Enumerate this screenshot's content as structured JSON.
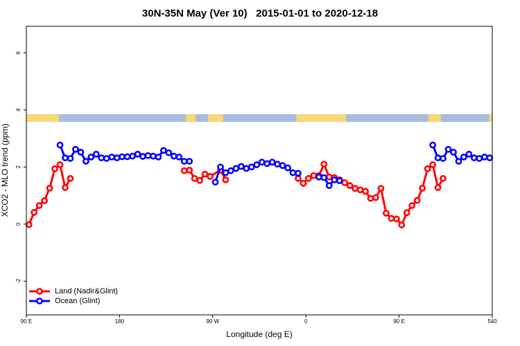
{
  "chart_data": {
    "type": "line",
    "title": "30N-35N May (Ver 10)   2015-01-01 to 2020-12-18",
    "x_label": "Longitude (deg E)",
    "y_label": "XCO2 - MLO trend (ppm)",
    "xlim": [
      90,
      540
    ],
    "ylim": [
      -3.18,
      6.93
    ],
    "xticks": [
      {
        "value": 90,
        "label": "90 E"
      },
      180,
      {
        "value": 270,
        "label": "90 W"
      },
      {
        "value": 360,
        "label": "0"
      },
      {
        "value": 450,
        "label": "90 E"
      },
      540
    ],
    "yticks": [
      -2,
      0,
      2,
      4,
      6
    ],
    "grid": false,
    "legend": "bottom-left",
    "surface_mask": {
      "ylim": [
        3.58,
        3.85
      ],
      "ocean_color": "#a8bcdc",
      "land_color": "#f7d87a",
      "land": [
        [
          90,
          121.5
        ],
        [
          244,
          253.5
        ],
        [
          265.5,
          280
        ],
        [
          351,
          399
        ],
        [
          478.5,
          490.5
        ],
        [
          537,
          540
        ]
      ]
    },
    "series": [
      {
        "name": "Land (Nadir&Glint)",
        "color": "#ff0000",
        "x": [
          92.5,
          97.5,
          102.5,
          107.5,
          112.5,
          117.5,
          122.5,
          127.5,
          132.5,
          137.5,
          242.5,
          247.5,
          252.5,
          257.5,
          262.5,
          267.5,
          277.5,
          282.5,
          287.5,
          352.5,
          357.5,
          362.5,
          367.5,
          372.5,
          377.5,
          382.5,
          387.5,
          392.5,
          397.5,
          402.5,
          407.5,
          412.5,
          417.5,
          422.5,
          427.5,
          432.5,
          437.5,
          442.5,
          447.5,
          452.5,
          457.5,
          462.5,
          467.5,
          472.5,
          477.5,
          482.5,
          487.5,
          492.5
        ],
        "values": [
          -0.02,
          0.41,
          0.65,
          0.82,
          1.26,
          1.94,
          2.08,
          1.28,
          1.6,
          null,
          1.87,
          1.89,
          1.6,
          1.53,
          1.75,
          1.67,
          1.89,
          1.55,
          null,
          1.6,
          1.43,
          1.6,
          1.7,
          1.7,
          2.1,
          1.65,
          1.63,
          1.55,
          1.45,
          1.35,
          1.25,
          1.2,
          1.15,
          0.9,
          0.93,
          1.25,
          0.38,
          0.2,
          0.18,
          -0.03,
          0.4,
          0.65,
          0.83,
          1.26,
          1.94,
          2.08,
          1.28,
          1.6
        ]
      },
      {
        "name": "Ocean (Glint)",
        "color": "#0000ff",
        "x": [
          122.5,
          127.5,
          132.5,
          137.5,
          142.5,
          147.5,
          152.5,
          157.5,
          162.5,
          167.5,
          172.5,
          177.5,
          182.5,
          187.5,
          192.5,
          197.5,
          202.5,
          207.5,
          212.5,
          217.5,
          222.5,
          227.5,
          232.5,
          237.5,
          242.5,
          247.5,
          252.5,
          272.5,
          277.5,
          282.5,
          287.5,
          292.5,
          297.5,
          302.5,
          307.5,
          312.5,
          317.5,
          322.5,
          327.5,
          332.5,
          337.5,
          342.5,
          347.5,
          352.5,
          357.5,
          372.5,
          377.5,
          382.5,
          387.5,
          392.5,
          397.5,
          482.5,
          487.5,
          492.5,
          497.5,
          502.5,
          507.5,
          512.5,
          517.5,
          522.5,
          527.5,
          532.5,
          537.5
        ],
        "values": [
          2.77,
          2.32,
          2.3,
          2.62,
          2.52,
          2.2,
          2.35,
          2.45,
          2.32,
          2.3,
          2.35,
          2.32,
          2.36,
          2.36,
          2.38,
          2.45,
          2.37,
          2.4,
          2.38,
          2.35,
          2.58,
          2.5,
          2.38,
          2.35,
          2.2,
          2.2,
          null,
          1.47,
          2.0,
          1.8,
          1.87,
          1.95,
          2.02,
          1.95,
          2.0,
          2.08,
          2.17,
          2.12,
          2.17,
          2.1,
          2.05,
          1.97,
          1.8,
          1.78,
          null,
          1.65,
          1.63,
          1.35,
          1.55,
          1.52,
          null,
          2.77,
          2.32,
          2.3,
          2.62,
          2.52,
          2.2,
          2.35,
          2.45,
          2.32,
          2.3,
          2.35,
          2.32
        ]
      }
    ]
  }
}
